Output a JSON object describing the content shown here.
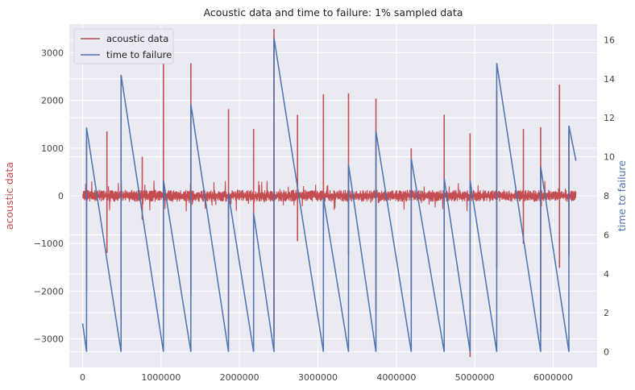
{
  "chart_data": {
    "type": "line",
    "title": "Acoustic data and time to failure: 1% sampled data",
    "xlabel": "",
    "ylabel_left": "acoustic data",
    "ylabel_right": "time to failure",
    "xlim": [
      -170000,
      6560000
    ],
    "ylim_left": [
      -3600,
      3600
    ],
    "ylim_right": [
      -0.8,
      16.8
    ],
    "x_ticks": [
      0,
      1000000,
      2000000,
      3000000,
      4000000,
      5000000,
      6000000
    ],
    "y_left_ticks": [
      -3000,
      -2000,
      -1000,
      0,
      1000,
      2000,
      3000
    ],
    "y_right_ticks": [
      0,
      2,
      4,
      6,
      8,
      10,
      12,
      14,
      16
    ],
    "grid": true,
    "legend_position": "top-left",
    "colors": {
      "acoustic": "#c44e52",
      "ttf": "#4c72b0",
      "background": "#eaeaf2",
      "grid": "#ffffff"
    },
    "series": [
      {
        "name": "acoustic data",
        "axis": "left",
        "color": "#c44e52",
        "noise_band": 120,
        "x_range": [
          0,
          6290000
        ],
        "spikes": [
          {
            "x": 50000,
            "hi": 1150,
            "lo": -2000
          },
          {
            "x": 310000,
            "hi": 1350,
            "lo": -1200
          },
          {
            "x": 490000,
            "hi": 1830,
            "lo": -2600
          },
          {
            "x": 760000,
            "hi": 820,
            "lo": -500
          },
          {
            "x": 1030000,
            "hi": 3400,
            "lo": -1820
          },
          {
            "x": 1380000,
            "hi": 2780,
            "lo": -2100
          },
          {
            "x": 1860000,
            "hi": 1820,
            "lo": -2950
          },
          {
            "x": 2180000,
            "hi": 1400,
            "lo": -1650
          },
          {
            "x": 2440000,
            "hi": 3500,
            "lo": -2950
          },
          {
            "x": 2740000,
            "hi": 1700,
            "lo": -950
          },
          {
            "x": 3070000,
            "hi": 2130,
            "lo": -730
          },
          {
            "x": 3390000,
            "hi": 2150,
            "lo": -1250
          },
          {
            "x": 3740000,
            "hi": 2040,
            "lo": -2400
          },
          {
            "x": 4190000,
            "hi": 1000,
            "lo": -2180
          },
          {
            "x": 4610000,
            "hi": 1700,
            "lo": -2000
          },
          {
            "x": 4940000,
            "hi": 1310,
            "lo": -3380
          },
          {
            "x": 5280000,
            "hi": 2200,
            "lo": -1520
          },
          {
            "x": 5620000,
            "hi": 1400,
            "lo": -1010
          },
          {
            "x": 5840000,
            "hi": 1440,
            "lo": -2850
          },
          {
            "x": 6080000,
            "hi": 2330,
            "lo": -1510
          },
          {
            "x": 6200000,
            "hi": 1350,
            "lo": -1250
          }
        ]
      },
      {
        "name": "time to failure",
        "axis": "right",
        "color": "#4c72b0",
        "points": [
          [
            0,
            1.45
          ],
          [
            50000,
            0
          ],
          [
            50000,
            11.5
          ],
          [
            490000,
            0
          ],
          [
            490000,
            14.2
          ],
          [
            1030000,
            0
          ],
          [
            1030000,
            8.8
          ],
          [
            1380000,
            0
          ],
          [
            1380000,
            12.7
          ],
          [
            1860000,
            0
          ],
          [
            1860000,
            8.1
          ],
          [
            2180000,
            0
          ],
          [
            2180000,
            7.1
          ],
          [
            2440000,
            0
          ],
          [
            2440000,
            16.1
          ],
          [
            3070000,
            0
          ],
          [
            3070000,
            7.9
          ],
          [
            3390000,
            0
          ],
          [
            3390000,
            9.6
          ],
          [
            3740000,
            0
          ],
          [
            3740000,
            11.3
          ],
          [
            4190000,
            0
          ],
          [
            4190000,
            9.9
          ],
          [
            4610000,
            0
          ],
          [
            4610000,
            8.9
          ],
          [
            4940000,
            0
          ],
          [
            4940000,
            8.8
          ],
          [
            5280000,
            0
          ],
          [
            5280000,
            14.8
          ],
          [
            5840000,
            0
          ],
          [
            5840000,
            9.5
          ],
          [
            6200000,
            0
          ],
          [
            6200000,
            11.6
          ],
          [
            6290000,
            9.8
          ]
        ]
      }
    ]
  }
}
